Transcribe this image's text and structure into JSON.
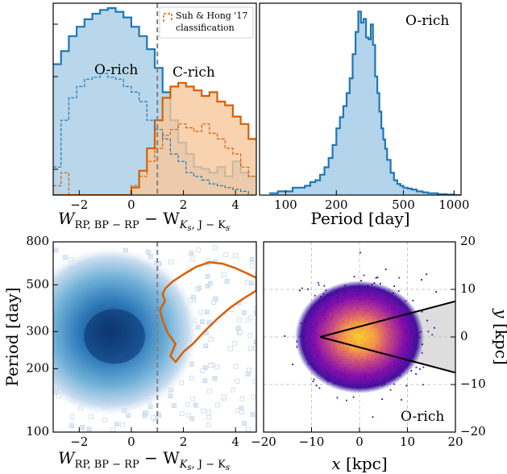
{
  "colors": {
    "orich": "#1f77b4",
    "orich_fill": "#a6cde6",
    "crich": "#d95f02",
    "crich_fill": "#f7c89b",
    "dashed_vline": "#808080",
    "wedge_fill": "#dddddd"
  },
  "chart_data": [
    {
      "id": "panel-a",
      "type": "histogram",
      "xlabel_main": "W",
      "xlabel_sub": "RP, BP − RP",
      "xlabel_minus": " − W",
      "xlabel_sub2": "K",
      "xlabel_sub2s": "s",
      "xlabel_sub3": ", J − K",
      "xlabel_sub3s": "s",
      "xlim": [
        -3.0,
        4.8
      ],
      "ylog": true,
      "xticks": [
        "−2",
        "0",
        "2",
        "4"
      ],
      "xtick_values": [
        -2,
        0,
        2,
        4
      ],
      "vline": 1.0,
      "annotations": [
        {
          "text": "O-rich",
          "x": -0.95,
          "y": 0.73
        },
        {
          "text": "C-rich",
          "x": 2.4,
          "y": 0.73
        }
      ],
      "legend": {
        "line1": "Suh & Hong '17",
        "line2": "classification",
        "position": "top-right"
      },
      "series": [
        {
          "name": "O-rich",
          "style": "filled",
          "x": [
            -3.0,
            -2.7,
            -2.4,
            -2.1,
            -1.8,
            -1.5,
            -1.2,
            -0.9,
            -0.6,
            -0.3,
            0.0,
            0.3,
            0.6,
            0.9,
            1.2,
            1.5,
            1.8,
            2.1,
            2.4,
            2.7,
            3.0,
            3.3,
            3.6,
            3.9,
            4.2,
            4.5
          ],
          "values": [
            0.7,
            0.77,
            0.85,
            0.9,
            0.94,
            0.97,
            0.99,
            1.0,
            0.98,
            0.95,
            0.9,
            0.85,
            0.78,
            0.68,
            0.55,
            0.4,
            0.28,
            0.22,
            0.15,
            0.14,
            0.12,
            0.15,
            0.1,
            0.18,
            0.12,
            0.1
          ]
        },
        {
          "name": "C-rich",
          "style": "filled",
          "x": [
            -3.0,
            -2.7,
            -2.4,
            -2.1,
            -1.8,
            -1.5,
            -1.2,
            -0.9,
            -0.6,
            -0.3,
            0.0,
            0.3,
            0.6,
            0.9,
            1.2,
            1.5,
            1.8,
            2.1,
            2.4,
            2.7,
            3.0,
            3.3,
            3.6,
            3.9,
            4.2,
            4.5
          ],
          "values": [
            0,
            0,
            0,
            0,
            0,
            0,
            0,
            0,
            0,
            0,
            0.04,
            0.13,
            0.25,
            0.4,
            0.52,
            0.58,
            0.6,
            0.58,
            0.56,
            0.53,
            0.55,
            0.5,
            0.48,
            0.42,
            0.38,
            0.3
          ]
        },
        {
          "name": "O-rich (S&H17)",
          "style": "dashed",
          "x": [
            -3.0,
            -2.7,
            -2.4,
            -2.1,
            -1.8,
            -1.5,
            -1.2,
            -0.9,
            -0.6,
            -0.3,
            0.0,
            0.3,
            0.6,
            0.9,
            1.2,
            1.5,
            1.8,
            2.1,
            2.4,
            2.7,
            3.0,
            3.3,
            3.6,
            3.9,
            4.2,
            4.5
          ],
          "values": [
            0.15,
            0.4,
            0.52,
            0.58,
            0.62,
            0.63,
            0.65,
            0.63,
            0.62,
            0.58,
            0.55,
            0.5,
            0.4,
            0.35,
            0.3,
            0.22,
            0.18,
            0.12,
            0.1,
            0.08,
            0.06,
            0.05,
            0.04,
            0.03,
            0.02,
            0.0
          ]
        },
        {
          "name": "C-rich (S&H17)",
          "style": "dashed",
          "x": [
            -3.0,
            -2.7,
            -2.4,
            -2.1,
            -1.8,
            -1.5,
            -1.2,
            -0.9,
            -0.6,
            -0.3,
            0.0,
            0.3,
            0.6,
            0.9,
            1.2,
            1.5,
            1.8,
            2.1,
            2.4,
            2.7,
            3.0,
            3.3,
            3.6,
            3.9,
            4.2,
            4.5
          ],
          "values": [
            0.05,
            0.12,
            0.0,
            0.0,
            0.0,
            0.0,
            0.0,
            0.0,
            0.0,
            0.0,
            0.05,
            0.1,
            0.18,
            0.25,
            0.32,
            0.35,
            0.38,
            0.36,
            0.34,
            0.38,
            0.33,
            0.3,
            0.25,
            0.22,
            0.15,
            0.1
          ]
        }
      ]
    },
    {
      "id": "panel-b",
      "type": "histogram",
      "xlabel": "Period [day]",
      "xlog": true,
      "xlim": [
        70,
        1100
      ],
      "xticks": [
        "100",
        "200",
        "500",
        "1000"
      ],
      "xtick_values": [
        100,
        200,
        500,
        1000
      ],
      "annotation": {
        "text": "O-rich",
        "position": "top-right"
      },
      "series": [
        {
          "name": "O-rich",
          "style": "filled",
          "x": [
            80,
            90,
            100,
            110,
            120,
            130,
            140,
            150,
            160,
            170,
            180,
            190,
            200,
            210,
            220,
            230,
            240,
            250,
            260,
            270,
            280,
            290,
            300,
            310,
            320,
            330,
            340,
            350,
            360,
            370,
            380,
            390,
            400,
            420,
            440,
            460,
            480,
            500,
            530,
            560,
            600,
            650,
            700,
            800,
            900,
            1000
          ],
          "values": [
            0.01,
            0.02,
            0.02,
            0.04,
            0.04,
            0.05,
            0.07,
            0.08,
            0.11,
            0.15,
            0.2,
            0.27,
            0.36,
            0.42,
            0.48,
            0.55,
            0.63,
            0.76,
            0.88,
            0.99,
            0.93,
            0.95,
            0.85,
            0.84,
            0.92,
            0.81,
            0.64,
            0.55,
            0.45,
            0.36,
            0.3,
            0.25,
            0.19,
            0.12,
            0.08,
            0.06,
            0.05,
            0.04,
            0.035,
            0.03,
            0.02,
            0.015,
            0.01,
            0.005,
            0.003,
            0
          ]
        }
      ]
    },
    {
      "id": "panel-c",
      "type": "heatmap",
      "xlabel_main": "W",
      "xlabel_sub": "RP, BP − RP",
      "xlabel_minus": " − W",
      "xlabel_sub2": "K",
      "xlabel_sub2s": "s",
      "xlabel_sub3": ", J − K",
      "xlabel_sub3s": "s",
      "ylabel": "Period [day]",
      "xlim": [
        -3.0,
        4.8
      ],
      "ylim": [
        100,
        800
      ],
      "ylog": true,
      "xticks": [
        "−2",
        "0",
        "2",
        "4"
      ],
      "xtick_values": [
        -2,
        0,
        2,
        4
      ],
      "yticks": [
        "100",
        "200",
        "300",
        "500",
        "800"
      ],
      "ytick_values": [
        100,
        200,
        300,
        500,
        800
      ],
      "vline": 1.0,
      "density_center": {
        "x": -0.8,
        "y": 300
      },
      "contour_color": "crich",
      "contour": [
        [
          1.3,
          480
        ],
        [
          1.6,
          520
        ],
        [
          2.0,
          560
        ],
        [
          2.5,
          610
        ],
        [
          3.0,
          640
        ],
        [
          3.5,
          630
        ],
        [
          4.0,
          600
        ],
        [
          4.4,
          570
        ],
        [
          4.8,
          540
        ],
        [
          4.8,
          470
        ],
        [
          4.3,
          430
        ],
        [
          3.8,
          390
        ],
        [
          3.3,
          345
        ],
        [
          2.8,
          300
        ],
        [
          2.4,
          265
        ],
        [
          2.0,
          240
        ],
        [
          1.7,
          215
        ],
        [
          1.5,
          230
        ],
        [
          1.7,
          262
        ],
        [
          1.4,
          295
        ],
        [
          1.2,
          340
        ],
        [
          1.1,
          380
        ],
        [
          1.3,
          420
        ],
        [
          1.2,
          450
        ],
        [
          1.3,
          480
        ]
      ]
    },
    {
      "id": "panel-d",
      "type": "heatmap",
      "xlabel_main": "x",
      "xlabel_unit": " [kpc]",
      "ylabel_main": "y",
      "ylabel_unit": " [kpc]",
      "xlim": [
        -20,
        20
      ],
      "ylim": [
        -20,
        20
      ],
      "xticks": [
        "−20",
        "−10",
        "0",
        "10",
        "20"
      ],
      "xtick_values": [
        -20,
        -10,
        0,
        10,
        20
      ],
      "yticks": [
        "20",
        "10",
        "0",
        "−10",
        "−20"
      ],
      "ytick_values": [
        20,
        10,
        0,
        -10,
        -20
      ],
      "yaxis_side": "right",
      "grid": true,
      "annotation": {
        "text": "O-rich",
        "position": "bottom-right"
      },
      "wedge": {
        "apex": [
          -8.2,
          0
        ],
        "upper_end": [
          20,
          7.5
        ],
        "lower_end": [
          20,
          -7.5
        ]
      }
    }
  ]
}
